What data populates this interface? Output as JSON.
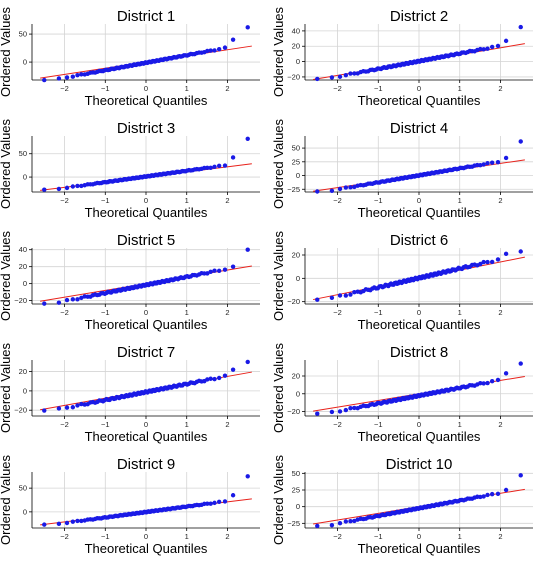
{
  "chart_data": [
    {
      "type": "scatter",
      "title": "District 1",
      "xlabel": "Theoretical Quantiles",
      "ylabel": "Ordered Values",
      "xlim": [
        -2.8,
        2.8
      ],
      "xticks": [
        -2,
        -1,
        0,
        1,
        2
      ],
      "ylim": [
        -32,
        68
      ],
      "yticks": [
        0,
        50
      ],
      "points": {
        "min": -30,
        "max": 25,
        "outliers": [
          40,
          62
        ]
      },
      "fit": {
        "intercept": 0,
        "slope": 11
      },
      "grid": true
    },
    {
      "type": "scatter",
      "title": "District 2",
      "xlabel": "Theoretical Quantiles",
      "ylabel": "Ordered Values",
      "xlim": [
        -2.8,
        2.8
      ],
      "xticks": [
        -2,
        -1,
        0,
        1,
        2
      ],
      "ylim": [
        -24,
        49
      ],
      "yticks": [
        -20,
        0,
        20,
        40
      ],
      "points": {
        "min": -21,
        "max": 20,
        "outliers": [
          27,
          45
        ]
      },
      "fit": {
        "intercept": 0,
        "slope": 9
      },
      "grid": true
    },
    {
      "type": "scatter",
      "title": "District 3",
      "xlabel": "Theoretical Quantiles",
      "ylabel": "Ordered Values",
      "xlim": [
        -2.8,
        2.8
      ],
      "xticks": [
        -2,
        -1,
        0,
        1,
        2
      ],
      "ylim": [
        -32,
        88
      ],
      "yticks": [
        0,
        50
      ],
      "points": {
        "min": -25,
        "max": 25,
        "outliers": [
          42,
          82
        ]
      },
      "fit": {
        "intercept": 0,
        "slope": 11
      },
      "grid": true
    },
    {
      "type": "scatter",
      "title": "District 4",
      "xlabel": "Theoretical Quantiles",
      "ylabel": "Ordered Values",
      "xlim": [
        -2.8,
        2.8
      ],
      "xticks": [
        -2,
        -1,
        0,
        1,
        2
      ],
      "ylim": [
        -30,
        72
      ],
      "yticks": [
        -25,
        0,
        25,
        50
      ],
      "points": {
        "min": -27,
        "max": 25,
        "outliers": [
          32,
          62
        ]
      },
      "fit": {
        "intercept": 0,
        "slope": 11
      },
      "grid": true
    },
    {
      "type": "scatter",
      "title": "District 5",
      "xlabel": "Theoretical Quantiles",
      "ylabel": "Ordered Values",
      "xlim": [
        -2.8,
        2.8
      ],
      "xticks": [
        -2,
        -1,
        0,
        1,
        2
      ],
      "ylim": [
        -24,
        42
      ],
      "yticks": [
        -20,
        0,
        20,
        40
      ],
      "points": {
        "min": -22,
        "max": 17,
        "outliers": [
          20,
          40
        ]
      },
      "fit": {
        "intercept": 0,
        "slope": 8
      },
      "grid": true
    },
    {
      "type": "scatter",
      "title": "District 6",
      "xlabel": "Theoretical Quantiles",
      "ylabel": "Ordered Values",
      "xlim": [
        -2.8,
        2.8
      ],
      "xticks": [
        -2,
        -1,
        0,
        1,
        2
      ],
      "ylim": [
        -22,
        26
      ],
      "yticks": [
        -20,
        0,
        20
      ],
      "points": {
        "min": -17,
        "max": 16,
        "outliers": [
          21,
          23
        ]
      },
      "fit": {
        "intercept": 0,
        "slope": 7
      },
      "grid": true
    },
    {
      "type": "scatter",
      "title": "District 7",
      "xlabel": "Theoretical Quantiles",
      "ylabel": "Ordered Values",
      "xlim": [
        -2.8,
        2.8
      ],
      "xticks": [
        -2,
        -1,
        0,
        1,
        2
      ],
      "ylim": [
        -26,
        32
      ],
      "yticks": [
        -20,
        0,
        20
      ],
      "points": {
        "min": -19,
        "max": 15,
        "outliers": [
          22,
          30
        ]
      },
      "fit": {
        "intercept": 0,
        "slope": 7.5
      },
      "grid": true
    },
    {
      "type": "scatter",
      "title": "District 8",
      "xlabel": "Theoretical Quantiles",
      "ylabel": "Ordered Values",
      "xlim": [
        -2.8,
        2.8
      ],
      "xticks": [
        -2,
        -1,
        0,
        1,
        2
      ],
      "ylim": [
        -25,
        38
      ],
      "yticks": [
        -20,
        0,
        20
      ],
      "points": {
        "min": -21,
        "max": 15,
        "outliers": [
          23,
          34
        ]
      },
      "fit": {
        "intercept": 0,
        "slope": 7.5
      },
      "grid": true
    },
    {
      "type": "scatter",
      "title": "District 9",
      "xlabel": "Theoretical Quantiles",
      "ylabel": "Ordered Values",
      "xlim": [
        -2.8,
        2.8
      ],
      "xticks": [
        -2,
        -1,
        0,
        1,
        2
      ],
      "ylim": [
        -34,
        84
      ],
      "yticks": [
        0,
        50
      ],
      "points": {
        "min": -25,
        "max": 22,
        "outliers": [
          35,
          75
        ]
      },
      "fit": {
        "intercept": 0,
        "slope": 10.5
      },
      "grid": true
    },
    {
      "type": "scatter",
      "title": "District 10",
      "xlabel": "Theoretical Quantiles",
      "ylabel": "Ordered Values",
      "xlim": [
        -2.8,
        2.8
      ],
      "xticks": [
        -2,
        -1,
        0,
        1,
        2
      ],
      "ylim": [
        -32,
        52
      ],
      "yticks": [
        -25,
        0,
        25,
        50
      ],
      "points": {
        "min": -27,
        "max": 20,
        "outliers": [
          25,
          47
        ]
      },
      "fit": {
        "intercept": 0,
        "slope": 10
      },
      "grid": true
    }
  ],
  "colors": {
    "points": "#1a1ae6",
    "fit": "#e8221b",
    "grid": "#d4d4d4",
    "axis": "#000000"
  }
}
